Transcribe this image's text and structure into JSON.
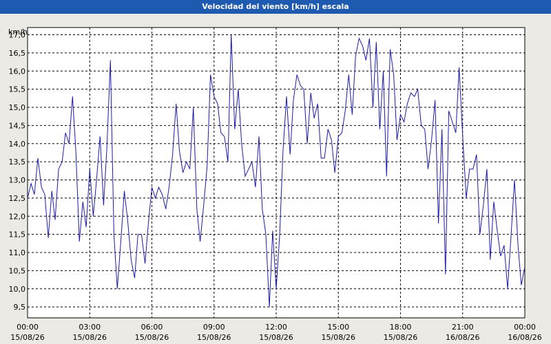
{
  "window": {
    "title": "Velocidad del viento [km/h] escala"
  },
  "chart_data": {
    "type": "line",
    "title": "Velocidad del viento [km/h] escala",
    "ylabel": "km/h",
    "xlabel": "",
    "ylim": [
      9.2,
      17.2
    ],
    "xlim": [
      0,
      24
    ],
    "grid": true,
    "line_color": "#1a1aa8",
    "y_ticks": [
      "9,5",
      "10,0",
      "10,5",
      "11,0",
      "11,5",
      "12,0",
      "12,5",
      "13,0",
      "13,5",
      "14,0",
      "14,5",
      "15,0",
      "15,5",
      "16,0",
      "16,5",
      "17,0"
    ],
    "x_ticks": [
      {
        "time": "00:00",
        "date": "15/08/26"
      },
      {
        "time": "03:00",
        "date": "15/08/26"
      },
      {
        "time": "06:00",
        "date": "15/08/26"
      },
      {
        "time": "09:00",
        "date": "15/08/26"
      },
      {
        "time": "12:00",
        "date": "15/08/26"
      },
      {
        "time": "15:00",
        "date": "15/08/26"
      },
      {
        "time": "18:00",
        "date": "15/08/26"
      },
      {
        "time": "21:00",
        "date": "16/08/26"
      },
      {
        "time": "00:00",
        "date": "16/08/26"
      }
    ],
    "series": [
      {
        "x": [
          0.0,
          0.17,
          0.33,
          0.5,
          0.67,
          0.83,
          1.0,
          1.17,
          1.33,
          1.5,
          1.67,
          1.83,
          2.0,
          2.17,
          2.33,
          2.5,
          2.67,
          2.83,
          3.0,
          3.17,
          3.33,
          3.5,
          3.67,
          3.83,
          4.0,
          4.17,
          4.33,
          4.5,
          4.67,
          4.83,
          5.0,
          5.17,
          5.33,
          5.5,
          5.67,
          5.83,
          6.0,
          6.17,
          6.33,
          6.5,
          6.67,
          6.83,
          7.0,
          7.17,
          7.33,
          7.5,
          7.67,
          7.83,
          8.0,
          8.17,
          8.33,
          8.5,
          8.67,
          8.83,
          9.0,
          9.17,
          9.33,
          9.5,
          9.67,
          9.83,
          10.0,
          10.17,
          10.33,
          10.5,
          10.67,
          10.83,
          11.0,
          11.17,
          11.33,
          11.5,
          11.67,
          11.83,
          12.0,
          12.17,
          12.33,
          12.5,
          12.67,
          12.83,
          13.0,
          13.17,
          13.33,
          13.5,
          13.67,
          13.83,
          14.0,
          14.17,
          14.33,
          14.5,
          14.67,
          14.83,
          15.0,
          15.17,
          15.33,
          15.5,
          15.67,
          15.83,
          16.0,
          16.17,
          16.33,
          16.5,
          16.67,
          16.83,
          17.0,
          17.17,
          17.33,
          17.5,
          17.67,
          17.83,
          18.0,
          18.17,
          18.33,
          18.5,
          18.67,
          18.83,
          19.0,
          19.17,
          19.33,
          19.5,
          19.67,
          19.83,
          20.0,
          20.17,
          20.33,
          20.5,
          20.67,
          20.83,
          21.0,
          21.17,
          21.33,
          21.5,
          21.67,
          21.83,
          22.0,
          22.17,
          22.33,
          22.5,
          22.67,
          22.83,
          23.0,
          23.17,
          23.33,
          23.5,
          23.67,
          23.83,
          24.0
        ],
        "y": [
          12.5,
          12.9,
          12.6,
          13.6,
          12.8,
          12.6,
          11.4,
          12.7,
          11.9,
          13.3,
          13.5,
          14.3,
          14.0,
          15.3,
          13.8,
          11.3,
          12.4,
          11.7,
          13.3,
          12.0,
          13.0,
          14.2,
          12.3,
          13.9,
          16.3,
          11.5,
          10.0,
          11.3,
          12.7,
          11.9,
          10.8,
          10.3,
          11.5,
          11.5,
          10.7,
          11.8,
          12.8,
          12.5,
          12.8,
          12.6,
          12.2,
          12.8,
          13.7,
          15.1,
          13.8,
          13.2,
          13.5,
          13.3,
          15.0,
          12.2,
          11.3,
          12.3,
          13.4,
          15.9,
          15.3,
          15.1,
          14.3,
          14.2,
          13.5,
          17.0,
          14.4,
          15.5,
          14.0,
          13.1,
          13.3,
          13.5,
          12.8,
          14.2,
          12.2,
          11.5,
          9.5,
          11.6,
          10.0,
          11.5,
          13.8,
          15.3,
          13.7,
          15.2,
          15.9,
          15.6,
          15.5,
          14.0,
          15.4,
          14.7,
          15.1,
          13.6,
          13.6,
          14.4,
          14.1,
          13.2,
          14.2,
          14.3,
          14.9,
          15.9,
          14.8,
          16.4,
          16.9,
          16.7,
          16.3,
          16.9,
          15.0,
          16.8,
          14.4,
          16.0,
          13.1,
          16.6,
          15.9,
          14.1,
          14.8,
          14.6,
          15.1,
          15.4,
          15.3,
          15.5,
          14.5,
          14.4,
          13.3,
          14.1,
          15.2,
          11.8,
          14.4,
          10.4,
          14.9,
          14.6,
          14.3,
          16.1,
          14.2,
          12.5,
          13.3,
          13.3,
          13.7,
          11.5,
          12.3,
          13.3,
          10.8,
          12.4,
          11.6,
          10.9,
          11.2,
          10.0,
          11.4,
          13.0,
          11.2,
          10.1,
          10.6
        ]
      }
    ]
  }
}
